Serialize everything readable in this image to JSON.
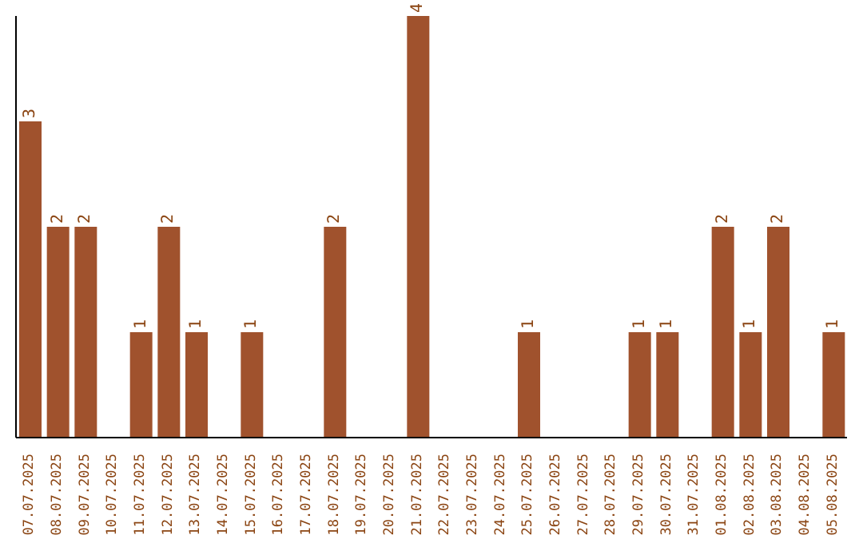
{
  "chart_data": {
    "type": "bar",
    "categories": [
      "07.07.2025",
      "08.07.2025",
      "09.07.2025",
      "10.07.2025",
      "11.07.2025",
      "12.07.2025",
      "13.07.2025",
      "14.07.2025",
      "15.07.2025",
      "16.07.2025",
      "17.07.2025",
      "18.07.2025",
      "19.07.2025",
      "20.07.2025",
      "21.07.2025",
      "22.07.2025",
      "23.07.2025",
      "24.07.2025",
      "25.07.2025",
      "26.07.2025",
      "27.07.2025",
      "28.07.2025",
      "29.07.2025",
      "30.07.2025",
      "31.07.2025",
      "01.08.2025",
      "02.08.2025",
      "03.08.2025",
      "04.08.2025",
      "05.08.2025"
    ],
    "values": [
      3,
      2,
      2,
      0,
      1,
      2,
      1,
      0,
      1,
      0,
      0,
      2,
      0,
      0,
      4,
      0,
      0,
      0,
      1,
      0,
      0,
      0,
      1,
      1,
      0,
      2,
      1,
      2,
      0,
      1
    ],
    "value_labels": [
      "3",
      "2",
      "2",
      null,
      "1",
      "2",
      "1",
      null,
      "1",
      null,
      null,
      "2",
      null,
      null,
      "4",
      null,
      null,
      null,
      "1",
      null,
      null,
      null,
      "1",
      "1",
      null,
      "2",
      "1",
      "2",
      null,
      "1"
    ],
    "color": "#a0522d",
    "grid": false,
    "legend": false
  }
}
